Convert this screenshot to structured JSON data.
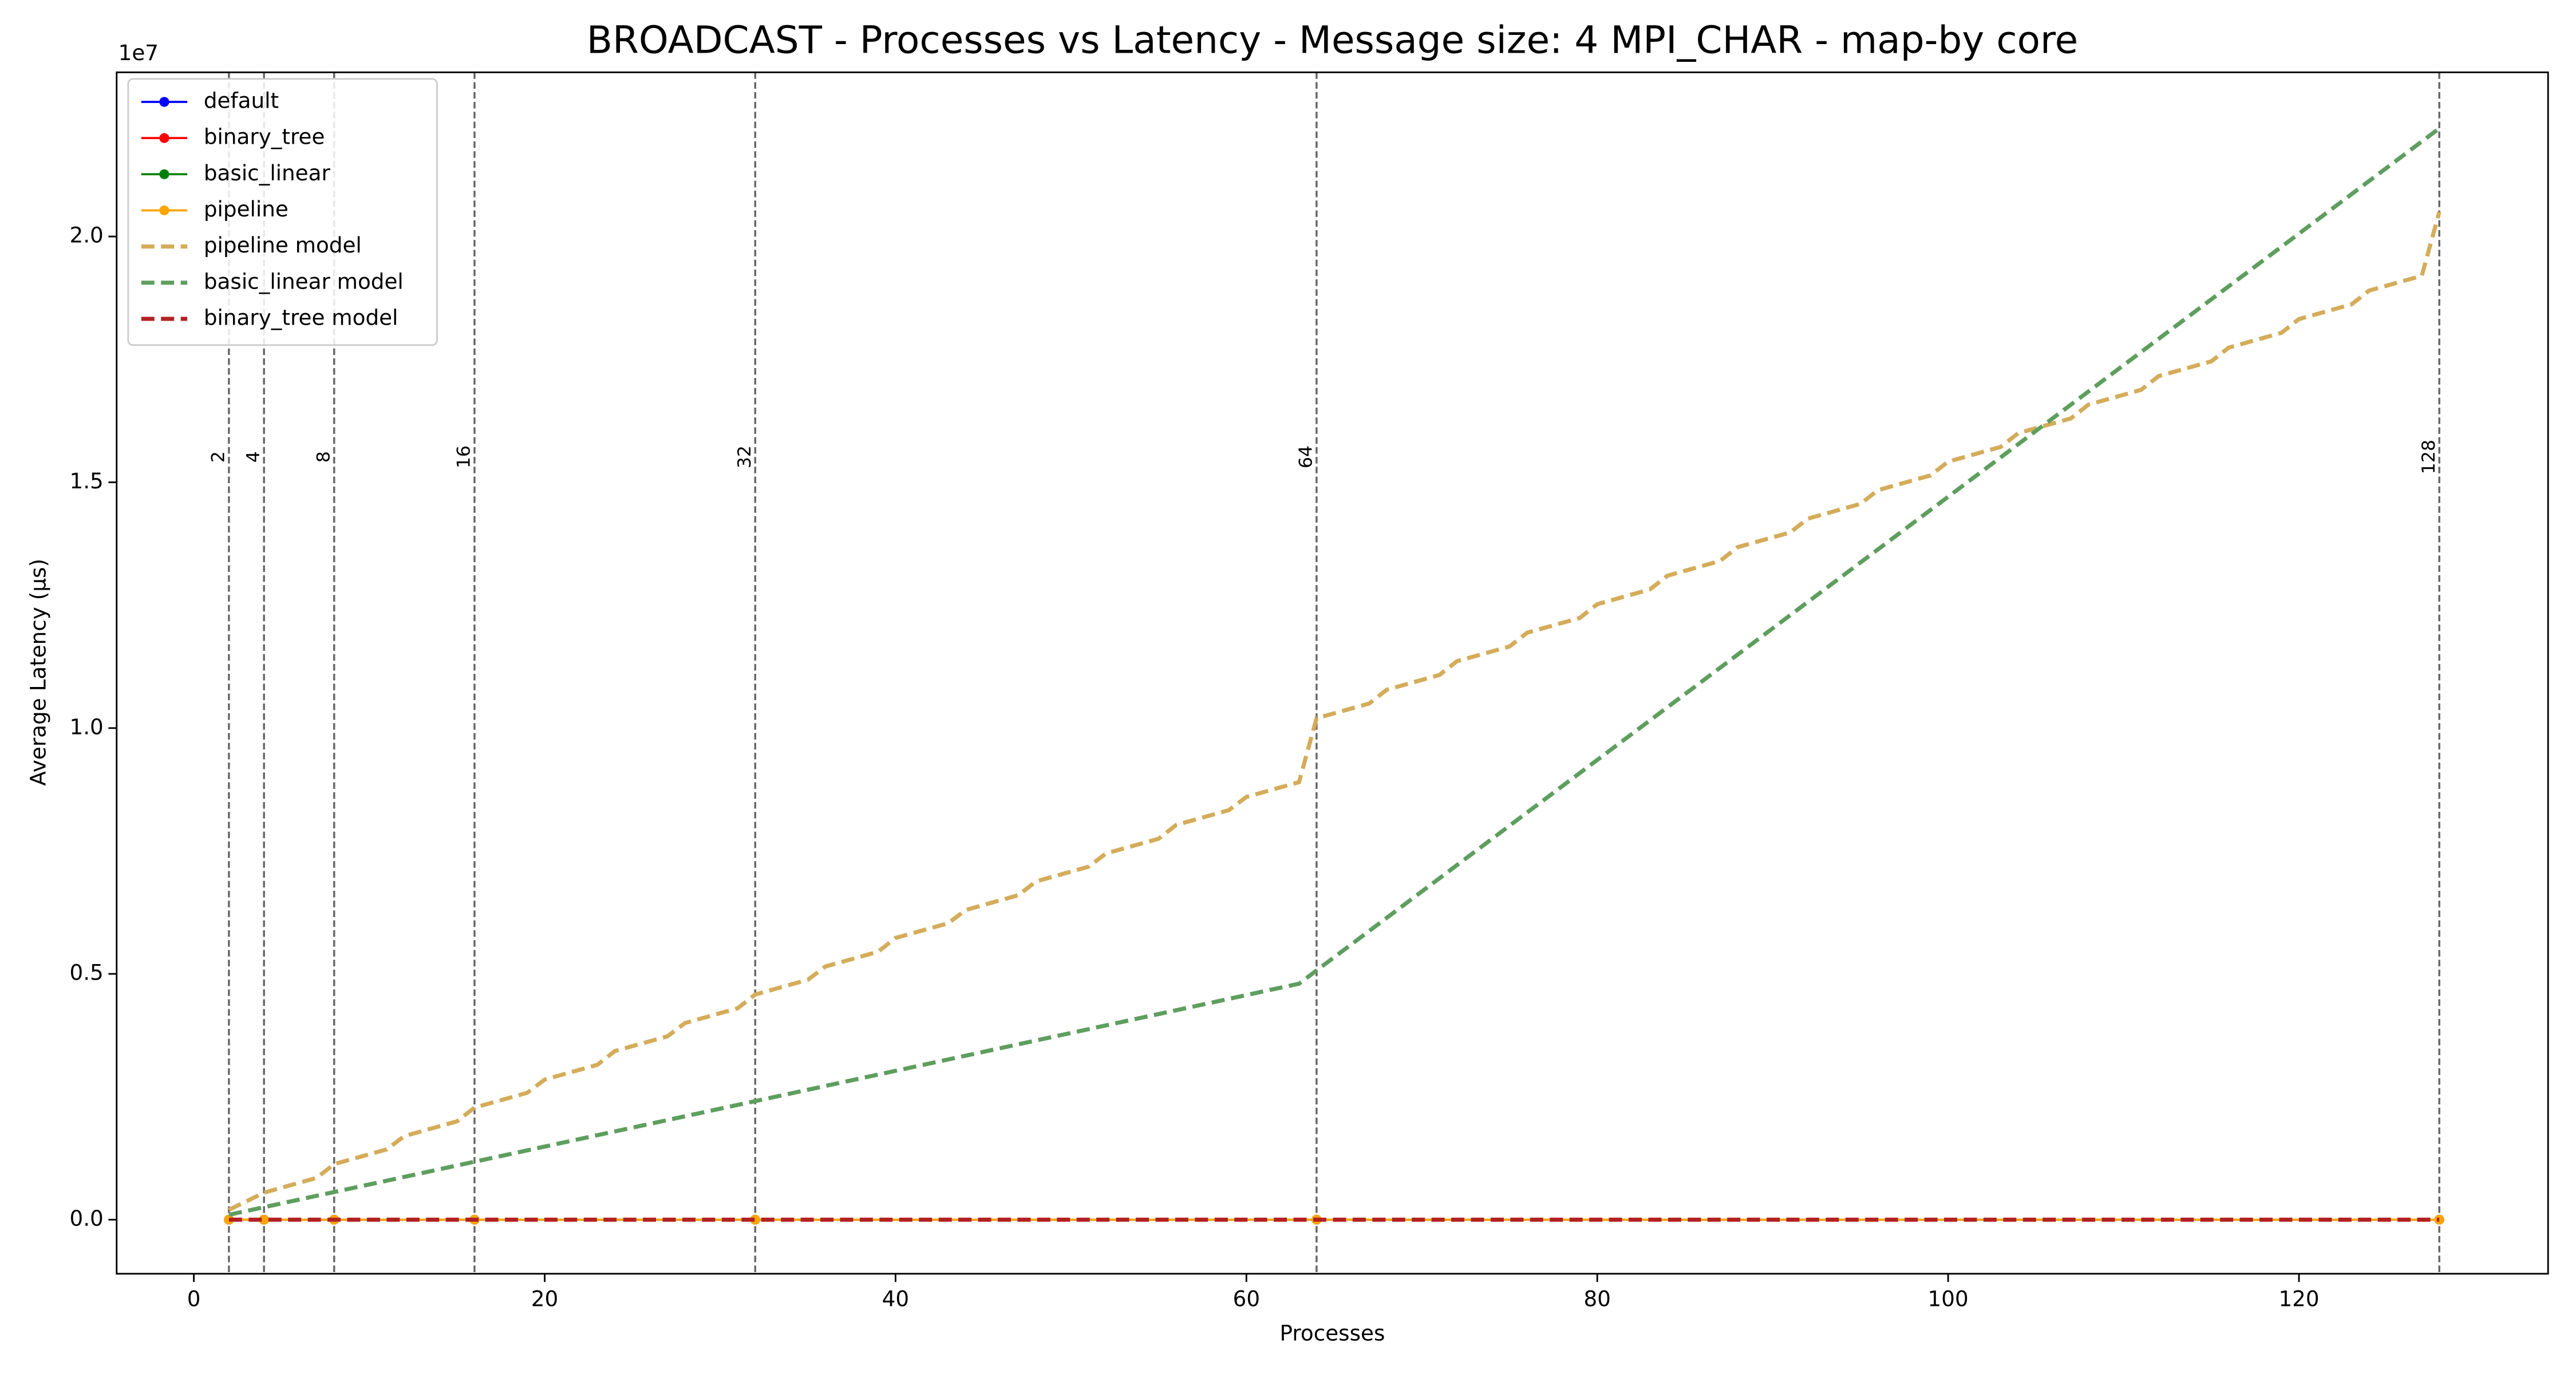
{
  "chart_data": {
    "type": "line",
    "title": "BROADCAST - Processes vs Latency - Message size: 4 MPI_CHAR - map-by core",
    "xlabel": "Processes",
    "ylabel": "Average Latency (μs)",
    "y_offset_label": "1e7",
    "xlim": [
      -4.4,
      134.2
    ],
    "ylim": [
      -0.11,
      2.334
    ],
    "xticks": [
      0,
      20,
      40,
      60,
      80,
      100,
      120
    ],
    "yticks": [
      {
        "value": 0,
        "label": "0.0"
      },
      {
        "value": 0.5,
        "label": "0.5"
      },
      {
        "value": 1,
        "label": "1.0"
      },
      {
        "value": 1.5,
        "label": "1.5"
      },
      {
        "value": 2,
        "label": "2.0"
      }
    ],
    "grid": false,
    "legend": "upper left",
    "vlines": [
      2,
      4,
      8,
      16,
      32,
      64,
      128
    ],
    "series": [
      {
        "name": "default",
        "color": "#0000ff",
        "style": "marker",
        "x": [
          2,
          4,
          8,
          16,
          32,
          64,
          128
        ],
        "values": [
          0,
          0,
          0,
          0,
          0,
          0,
          0
        ]
      },
      {
        "name": "binary_tree",
        "color": "#ff0000",
        "style": "marker",
        "x": [
          2,
          4,
          8,
          16,
          32,
          64,
          128
        ],
        "values": [
          0,
          0,
          0,
          0,
          0,
          0,
          0
        ]
      },
      {
        "name": "basic_linear",
        "color": "#008000",
        "style": "marker",
        "x": [
          2,
          4,
          8,
          16,
          32,
          64,
          128
        ],
        "values": [
          0,
          0,
          0,
          0,
          0,
          0,
          0
        ]
      },
      {
        "name": "pipeline",
        "color": "#ffa500",
        "style": "marker",
        "x": [
          2,
          4,
          8,
          16,
          32,
          64,
          128
        ],
        "values": [
          0,
          0,
          0,
          0,
          0,
          0,
          0
        ]
      },
      {
        "name": "pipeline model",
        "color": "#d4ac5a",
        "style": "dashed",
        "x": [
          2,
          4,
          7,
          8,
          11,
          12,
          15,
          16,
          19,
          20,
          23,
          24,
          27,
          28,
          31,
          32,
          35,
          36,
          39,
          40,
          43,
          44,
          47,
          48,
          51,
          52,
          55,
          56,
          59,
          60,
          63,
          64,
          67,
          68,
          71,
          72,
          75,
          76,
          79,
          80,
          83,
          84,
          87,
          88,
          91,
          92,
          95,
          96,
          99,
          100,
          103,
          104,
          107,
          108,
          111,
          112,
          115,
          116,
          119,
          120,
          123,
          124,
          127,
          128
        ],
        "values": [
          0.02,
          0.055,
          0.085,
          0.113,
          0.143,
          0.17,
          0.2,
          0.228,
          0.258,
          0.285,
          0.315,
          0.343,
          0.373,
          0.4,
          0.43,
          0.458,
          0.488,
          0.515,
          0.545,
          0.573,
          0.603,
          0.63,
          0.66,
          0.688,
          0.718,
          0.745,
          0.775,
          0.803,
          0.833,
          0.86,
          0.89,
          1.02,
          1.05,
          1.078,
          1.108,
          1.136,
          1.166,
          1.194,
          1.224,
          1.252,
          1.282,
          1.31,
          1.34,
          1.368,
          1.398,
          1.426,
          1.456,
          1.484,
          1.514,
          1.542,
          1.572,
          1.6,
          1.63,
          1.658,
          1.688,
          1.716,
          1.746,
          1.774,
          1.804,
          1.832,
          1.862,
          1.89,
          1.92,
          2.05
        ]
      },
      {
        "name": "basic_linear model",
        "color": "#5e9e5e",
        "style": "dashed",
        "x": [
          2,
          63,
          64,
          128
        ],
        "values": [
          0.01,
          0.48,
          0.507,
          2.22
        ]
      },
      {
        "name": "binary_tree model",
        "color": "#b22222",
        "style": "dashed",
        "x": [
          2,
          128
        ],
        "values": [
          0,
          0
        ]
      }
    ]
  }
}
